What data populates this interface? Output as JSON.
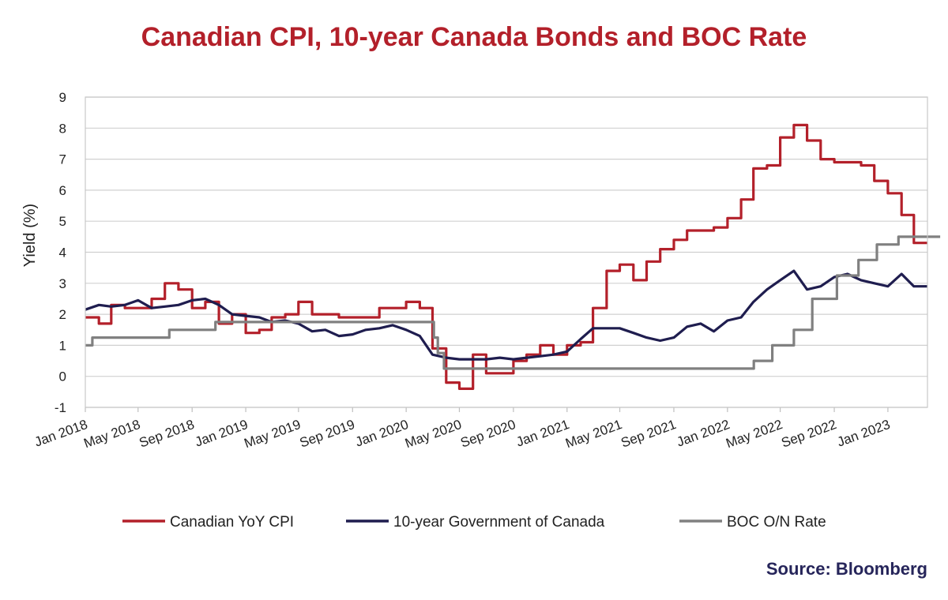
{
  "chart_data": {
    "type": "line",
    "title": "Canadian CPI, 10-year Canada Bonds and BOC Rate",
    "ylabel": "Yield (%)",
    "xlabel": "",
    "ylim": [
      -1,
      9
    ],
    "yticks": [
      -1,
      0,
      1,
      2,
      3,
      4,
      5,
      6,
      7,
      8,
      9
    ],
    "xlim": [
      "Jan 2018",
      "Apr 2023"
    ],
    "xticks": [
      "Jan 2018",
      "May 2018",
      "Sep 2018",
      "Jan 2019",
      "May 2019",
      "Sep 2019",
      "Jan 2020",
      "May 2020",
      "Sep 2020",
      "Jan 2021",
      "May 2021",
      "Sep 2021",
      "Jan 2022",
      "May 2022",
      "Sep 2022",
      "Jan 2023"
    ],
    "grid": true,
    "legend": "bottom",
    "series": [
      {
        "name": "Canadian YoY CPI",
        "color": "#b3202a",
        "step": true,
        "x": [
          "2018-01",
          "2018-02",
          "2018-03",
          "2018-04",
          "2018-05",
          "2018-06",
          "2018-07",
          "2018-08",
          "2018-09",
          "2018-10",
          "2018-11",
          "2018-12",
          "2019-01",
          "2019-02",
          "2019-03",
          "2019-04",
          "2019-05",
          "2019-06",
          "2019-07",
          "2019-08",
          "2019-09",
          "2019-10",
          "2019-11",
          "2019-12",
          "2020-01",
          "2020-02",
          "2020-03",
          "2020-04",
          "2020-05",
          "2020-06",
          "2020-07",
          "2020-08",
          "2020-09",
          "2020-10",
          "2020-11",
          "2020-12",
          "2021-01",
          "2021-02",
          "2021-03",
          "2021-04",
          "2021-05",
          "2021-06",
          "2021-07",
          "2021-08",
          "2021-09",
          "2021-10",
          "2021-11",
          "2021-12",
          "2022-01",
          "2022-02",
          "2022-03",
          "2022-04",
          "2022-05",
          "2022-06",
          "2022-07",
          "2022-08",
          "2022-09",
          "2022-10",
          "2022-11",
          "2022-12",
          "2023-01",
          "2023-02",
          "2023-03",
          "2023-04"
        ],
        "y": [
          1.9,
          1.7,
          2.3,
          2.2,
          2.2,
          2.5,
          3.0,
          2.8,
          2.2,
          2.4,
          1.7,
          2.0,
          1.4,
          1.5,
          1.9,
          2.0,
          2.4,
          2.0,
          2.0,
          1.9,
          1.9,
          1.9,
          2.2,
          2.2,
          2.4,
          2.2,
          0.9,
          -0.2,
          -0.4,
          0.7,
          0.1,
          0.1,
          0.5,
          0.7,
          1.0,
          0.7,
          1.0,
          1.1,
          2.2,
          3.4,
          3.6,
          3.1,
          3.7,
          4.1,
          4.4,
          4.7,
          4.7,
          4.8,
          5.1,
          5.7,
          6.7,
          6.8,
          7.7,
          8.1,
          7.6,
          7.0,
          6.9,
          6.9,
          6.8,
          6.3,
          5.9,
          5.2,
          4.3,
          4.3
        ]
      },
      {
        "name": "10-year Government of Canada",
        "color": "#1f1d4f",
        "step": false,
        "x": [
          "2018-01",
          "2018-02",
          "2018-03",
          "2018-04",
          "2018-05",
          "2018-06",
          "2018-07",
          "2018-08",
          "2018-09",
          "2018-10",
          "2018-11",
          "2018-12",
          "2019-01",
          "2019-02",
          "2019-03",
          "2019-04",
          "2019-05",
          "2019-06",
          "2019-07",
          "2019-08",
          "2019-09",
          "2019-10",
          "2019-11",
          "2019-12",
          "2020-01",
          "2020-02",
          "2020-03",
          "2020-04",
          "2020-05",
          "2020-06",
          "2020-07",
          "2020-08",
          "2020-09",
          "2020-10",
          "2020-11",
          "2020-12",
          "2021-01",
          "2021-02",
          "2021-03",
          "2021-04",
          "2021-05",
          "2021-06",
          "2021-07",
          "2021-08",
          "2021-09",
          "2021-10",
          "2021-11",
          "2021-12",
          "2022-01",
          "2022-02",
          "2022-03",
          "2022-04",
          "2022-05",
          "2022-06",
          "2022-07",
          "2022-08",
          "2022-09",
          "2022-10",
          "2022-11",
          "2022-12",
          "2023-01",
          "2023-02",
          "2023-03",
          "2023-04"
        ],
        "y": [
          2.15,
          2.3,
          2.25,
          2.3,
          2.45,
          2.2,
          2.25,
          2.3,
          2.45,
          2.5,
          2.3,
          2.0,
          1.95,
          1.9,
          1.75,
          1.8,
          1.7,
          1.45,
          1.5,
          1.3,
          1.35,
          1.5,
          1.55,
          1.65,
          1.5,
          1.3,
          0.7,
          0.6,
          0.55,
          0.55,
          0.55,
          0.6,
          0.55,
          0.6,
          0.65,
          0.7,
          0.8,
          1.2,
          1.55,
          1.55,
          1.55,
          1.4,
          1.25,
          1.15,
          1.25,
          1.6,
          1.7,
          1.45,
          1.8,
          1.9,
          2.4,
          2.8,
          3.1,
          3.4,
          2.8,
          2.9,
          3.2,
          3.3,
          3.1,
          3.0,
          2.9,
          3.3,
          2.9,
          2.9
        ]
      },
      {
        "name": "BOC O/N Rate",
        "color": "#808080",
        "step": true,
        "x": [
          "2018-01-01",
          "2018-01-17",
          "2018-07-11",
          "2018-10-24",
          "2020-03-04",
          "2020-03-13",
          "2020-03-27",
          "2022-03-02",
          "2022-04-13",
          "2022-06-01",
          "2022-07-13",
          "2022-09-07",
          "2022-10-26",
          "2022-12-07",
          "2023-01-25",
          "2023-04-30"
        ],
        "y": [
          1.0,
          1.25,
          1.5,
          1.75,
          1.25,
          0.75,
          0.25,
          0.5,
          1.0,
          1.5,
          2.5,
          3.25,
          3.75,
          4.25,
          4.5,
          4.5
        ]
      }
    ]
  },
  "source": "Source: Bloomberg"
}
